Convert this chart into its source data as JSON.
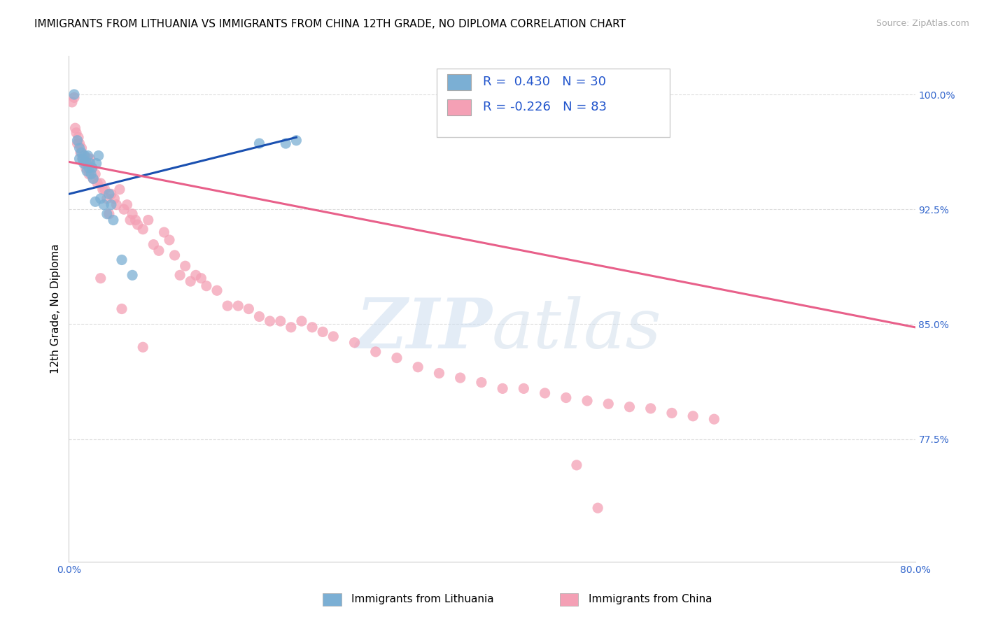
{
  "title": "IMMIGRANTS FROM LITHUANIA VS IMMIGRANTS FROM CHINA 12TH GRADE, NO DIPLOMA CORRELATION CHART",
  "source": "Source: ZipAtlas.com",
  "ylabel": "12th Grade, No Diploma",
  "xlim": [
    0.0,
    0.8
  ],
  "ylim": [
    0.695,
    1.025
  ],
  "y_tick_vals": [
    1.0,
    0.925,
    0.85,
    0.775
  ],
  "y_tick_labels": [
    "100.0%",
    "92.5%",
    "85.0%",
    "77.5%"
  ],
  "x_tick_vals": [
    0.0,
    0.8
  ],
  "x_tick_labels": [
    "0.0%",
    "80.0%"
  ],
  "blue_scatter_x": [
    0.005,
    0.008,
    0.01,
    0.01,
    0.012,
    0.013,
    0.014,
    0.015,
    0.016,
    0.017,
    0.018,
    0.019,
    0.02,
    0.021,
    0.022,
    0.023,
    0.025,
    0.026,
    0.028,
    0.03,
    0.033,
    0.036,
    0.038,
    0.04,
    0.042,
    0.05,
    0.06,
    0.18,
    0.205,
    0.215
  ],
  "blue_scatter_y": [
    1.0,
    0.97,
    0.965,
    0.958,
    0.962,
    0.958,
    0.955,
    0.96,
    0.956,
    0.95,
    0.96,
    0.952,
    0.955,
    0.948,
    0.952,
    0.945,
    0.93,
    0.955,
    0.96,
    0.932,
    0.928,
    0.922,
    0.935,
    0.928,
    0.918,
    0.892,
    0.882,
    0.968,
    0.968,
    0.97
  ],
  "pink_scatter_x": [
    0.003,
    0.005,
    0.006,
    0.007,
    0.008,
    0.009,
    0.01,
    0.011,
    0.012,
    0.013,
    0.014,
    0.015,
    0.016,
    0.018,
    0.019,
    0.02,
    0.022,
    0.023,
    0.025,
    0.027,
    0.03,
    0.032,
    0.034,
    0.036,
    0.038,
    0.04,
    0.043,
    0.045,
    0.048,
    0.052,
    0.055,
    0.058,
    0.06,
    0.063,
    0.065,
    0.07,
    0.075,
    0.08,
    0.085,
    0.09,
    0.095,
    0.1,
    0.105,
    0.11,
    0.115,
    0.12,
    0.125,
    0.13,
    0.14,
    0.15,
    0.16,
    0.17,
    0.18,
    0.19,
    0.2,
    0.21,
    0.22,
    0.23,
    0.24,
    0.25,
    0.27,
    0.29,
    0.31,
    0.33,
    0.35,
    0.37,
    0.39,
    0.41,
    0.43,
    0.45,
    0.47,
    0.49,
    0.51,
    0.53,
    0.55,
    0.57,
    0.59,
    0.61,
    0.03,
    0.05,
    0.07,
    0.48,
    0.5
  ],
  "pink_scatter_y": [
    0.995,
    0.998,
    0.978,
    0.975,
    0.968,
    0.972,
    0.968,
    0.962,
    0.965,
    0.958,
    0.96,
    0.955,
    0.952,
    0.958,
    0.948,
    0.958,
    0.952,
    0.945,
    0.948,
    0.942,
    0.942,
    0.938,
    0.938,
    0.932,
    0.922,
    0.935,
    0.932,
    0.928,
    0.938,
    0.925,
    0.928,
    0.918,
    0.922,
    0.918,
    0.915,
    0.912,
    0.918,
    0.902,
    0.898,
    0.91,
    0.905,
    0.895,
    0.882,
    0.888,
    0.878,
    0.882,
    0.88,
    0.875,
    0.872,
    0.862,
    0.862,
    0.86,
    0.855,
    0.852,
    0.852,
    0.848,
    0.852,
    0.848,
    0.845,
    0.842,
    0.838,
    0.832,
    0.828,
    0.822,
    0.818,
    0.815,
    0.812,
    0.808,
    0.808,
    0.805,
    0.802,
    0.8,
    0.798,
    0.796,
    0.795,
    0.792,
    0.79,
    0.788,
    0.88,
    0.86,
    0.835,
    0.758,
    0.73
  ],
  "blue_line_x": [
    0.0,
    0.215
  ],
  "blue_line_y": [
    0.935,
    0.972
  ],
  "pink_line_x": [
    0.0,
    0.8
  ],
  "pink_line_y": [
    0.956,
    0.848
  ],
  "watermark_zip": "ZIP",
  "watermark_atlas": "atlas",
  "blue_color": "#7bafd4",
  "pink_color": "#f4a0b5",
  "blue_line_color": "#1a50b0",
  "pink_line_color": "#e8608a",
  "title_fontsize": 11,
  "source_fontsize": 9,
  "ylabel_fontsize": 11,
  "tick_fontsize": 10,
  "scatter_size": 120,
  "background_color": "#ffffff",
  "grid_color": "#dddddd"
}
